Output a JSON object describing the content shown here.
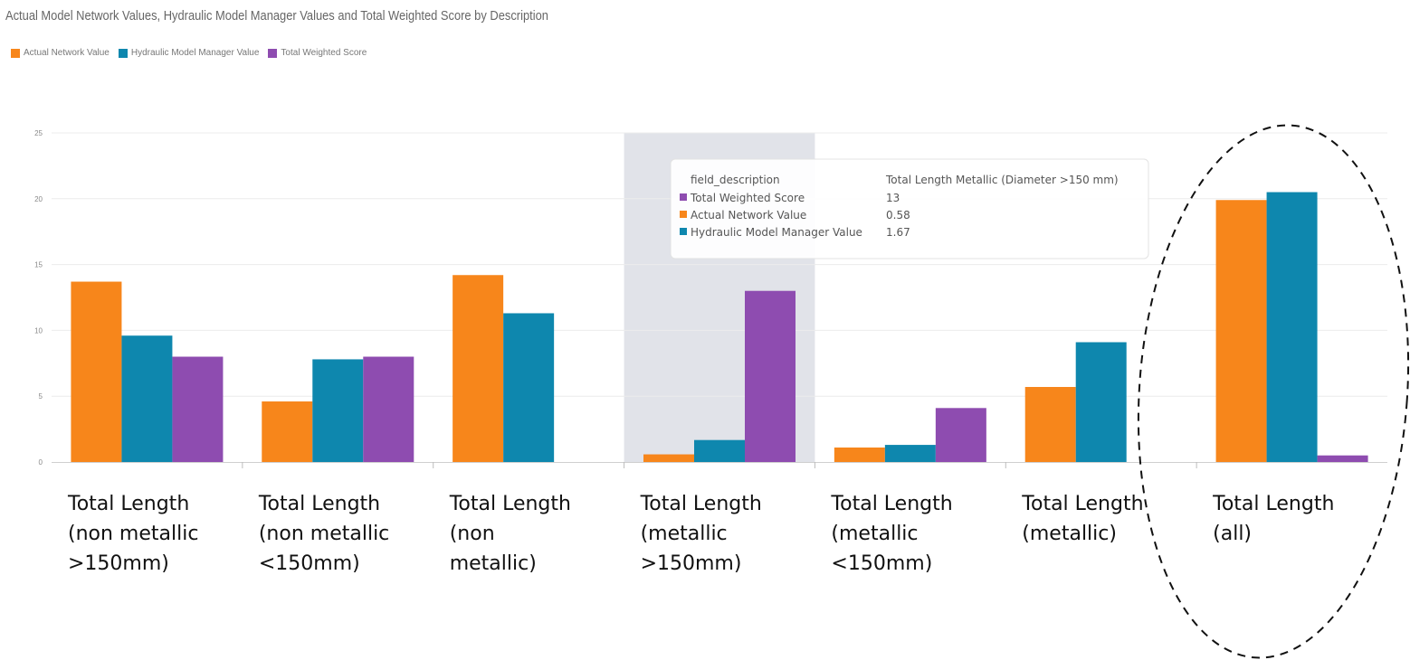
{
  "title": "Actual Model Network Values, Hydraulic Model Manager Values and Total Weighted Score by Description",
  "legend": [
    {
      "label": "Actual Network Value",
      "color": "#f7861b"
    },
    {
      "label": "Hydraulic Model Manager Value",
      "color": "#0e87ae"
    },
    {
      "label": "Total Weighted Score",
      "color": "#8e4cb0"
    }
  ],
  "chart_data": {
    "type": "bar",
    "categories": [
      "Total Length (non metallic >150mm)",
      "Total Length (non metallic <150mm)",
      "Total Length (non metallic)",
      "Total Length (metallic >150mm)",
      "Total Length (metallic <150mm)",
      "Total Length (metallic)",
      "Total Length (all)"
    ],
    "series": [
      {
        "name": "Actual Network Value",
        "color": "#f7861b",
        "values": [
          13.7,
          4.6,
          14.2,
          0.58,
          1.1,
          5.7,
          19.9
        ]
      },
      {
        "name": "Hydraulic Model Manager Value",
        "color": "#0e87ae",
        "values": [
          9.6,
          7.8,
          11.3,
          1.67,
          1.3,
          9.1,
          20.5
        ]
      },
      {
        "name": "Total Weighted Score",
        "color": "#8e4cb0",
        "values": [
          8.0,
          8.0,
          0,
          13,
          4.1,
          0,
          0.5
        ]
      }
    ],
    "yticks": [
      "0",
      "5",
      "10",
      "15",
      "20",
      "25"
    ],
    "ylim": [
      0,
      25
    ],
    "grid": true,
    "legend_position": "top-left",
    "highlighted_category": 3,
    "tooltip": {
      "header_key": "field_description",
      "header_value": "Total Length Metallic (Diameter >150 mm)",
      "rows": [
        {
          "label": "Total Weighted Score",
          "value": "13",
          "color": "#8e4cb0"
        },
        {
          "label": "Actual Network Value",
          "value": "0.58",
          "color": "#f7861b"
        },
        {
          "label": "Hydraulic Model Manager Value",
          "value": "1.67",
          "color": "#0e87ae"
        }
      ]
    }
  },
  "category_labels": [
    "Total Length\n(non metallic\n>150mm)",
    "Total Length\n(non metallic\n<150mm)",
    "Total Length\n(non\nmetallic)",
    "Total Length\n(metallic\n>150mm)",
    "Total Length\n(metallic\n<150mm)",
    "Total Length\n(metallic)",
    "Total Length\n(all)"
  ]
}
